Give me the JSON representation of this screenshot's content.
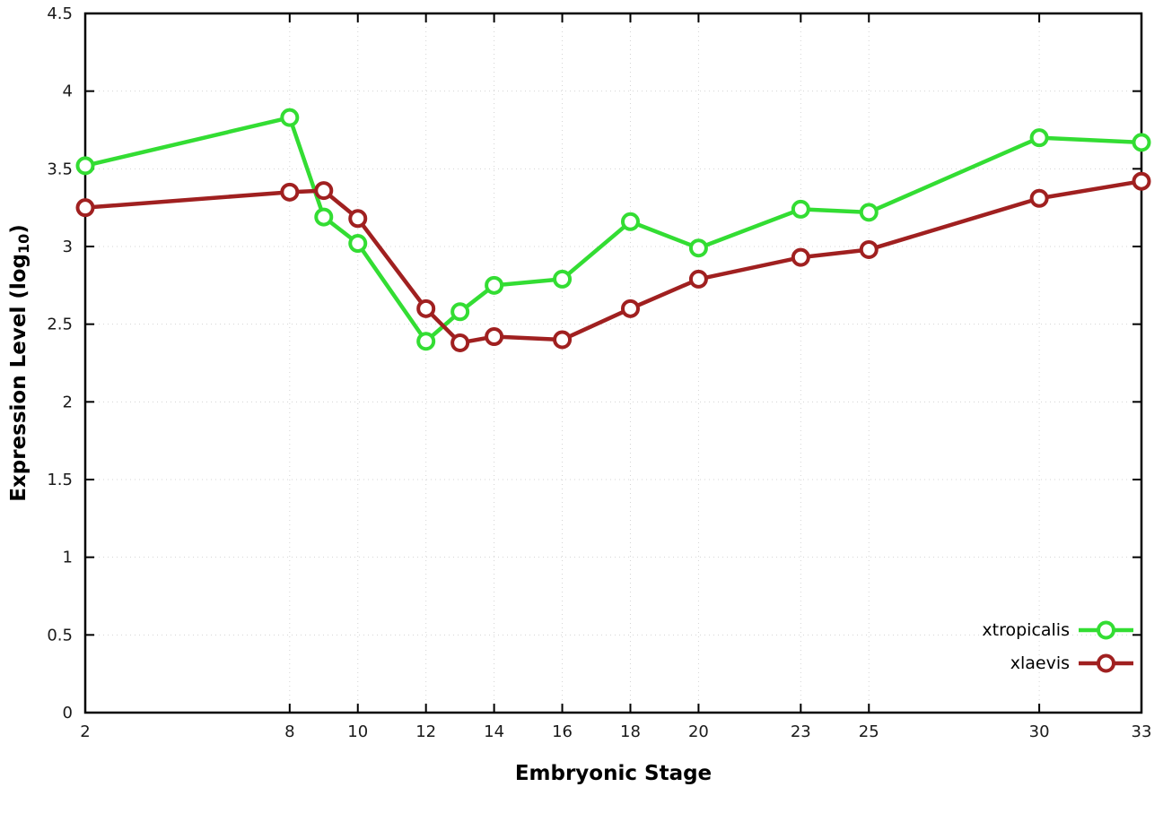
{
  "chart_data": {
    "type": "line",
    "title": "",
    "xlabel": "Embryonic Stage",
    "ylabel": {
      "text": "Expression Level (log",
      "sub": "10",
      "after": ")"
    },
    "x": [
      2,
      8,
      9,
      10,
      12,
      13,
      14,
      16,
      18,
      20,
      23,
      25,
      30,
      33
    ],
    "series": [
      {
        "name": "xtropicalis",
        "color": "#33dd33",
        "values": [
          3.52,
          3.83,
          3.19,
          3.02,
          2.39,
          2.58,
          2.75,
          2.79,
          3.16,
          2.99,
          3.24,
          3.22,
          3.7,
          3.67
        ]
      },
      {
        "name": "xlaevis",
        "color": "#a02020",
        "values": [
          3.25,
          3.35,
          3.36,
          3.18,
          2.6,
          2.38,
          2.42,
          2.4,
          2.6,
          2.79,
          2.93,
          2.98,
          3.31,
          3.42
        ]
      }
    ],
    "xticks": [
      2,
      8,
      10,
      12,
      14,
      16,
      18,
      20,
      23,
      25,
      30,
      33
    ],
    "yticks": [
      0,
      0.5,
      1,
      1.5,
      2,
      2.5,
      3,
      3.5,
      4,
      4.5
    ],
    "xlim": [
      2,
      33
    ],
    "ylim": [
      0,
      4.5
    ],
    "grid": true,
    "legend_position": "bottom-right",
    "border_color": "#000000",
    "grid_color": "#d4d4d4",
    "background_color": "#ffffff"
  }
}
